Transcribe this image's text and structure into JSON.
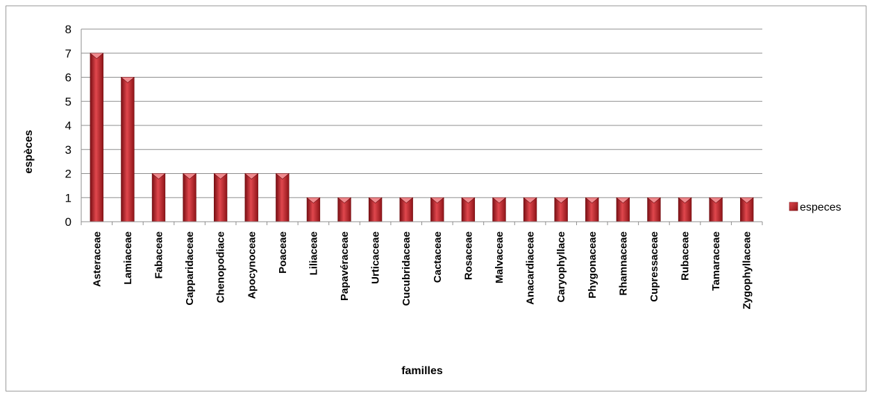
{
  "chart_data": {
    "type": "bar",
    "xlabel": "familles",
    "ylabel": "espèces",
    "ylim": [
      0,
      8
    ],
    "yticks": [
      0,
      1,
      2,
      3,
      4,
      5,
      6,
      7,
      8
    ],
    "grid": true,
    "legend_position": "right",
    "categories": [
      "Asteraceae",
      "Lamiaceae",
      "Fabaceae",
      "Capparidaceae",
      "Chenopodiace",
      "Apocynoceae",
      "Poaceae",
      "Liliaceae",
      "Papavéraceae",
      "Urticaceae",
      "Cucubridaceae",
      "Cactaceae",
      "Rosaceae",
      "Malvaceae",
      "Anacardiaceae",
      "Caryophyllace",
      "Phygonaceae",
      "Rhamnaceae",
      "Cupressaceae",
      "Rubaceae",
      "Tamaraceae",
      "Zygophyllaceae"
    ],
    "series": [
      {
        "name": "especes",
        "color": "#c0272d",
        "values": [
          7,
          6,
          2,
          2,
          2,
          2,
          2,
          1,
          1,
          1,
          1,
          1,
          1,
          1,
          1,
          1,
          1,
          1,
          1,
          1,
          1,
          1
        ]
      }
    ]
  }
}
